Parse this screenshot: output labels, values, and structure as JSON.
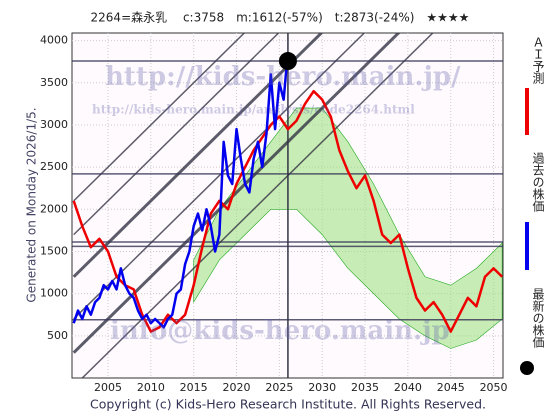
{
  "chart_data": {
    "type": "line",
    "title": "2264=森永乳　 c:3758　m:1612(-57%)　t:2873(-24%)　★★★★",
    "generated": "Generated on Monday 2026/1/5.",
    "copyright": "Copyright (c) Kids-Hero Research Institute. All Rights Reserved.",
    "watermarks": [
      "http://kids-hero.main.jp/",
      "http://kids-hero.main.jp/analysis/code2264.html",
      "info@kids-hero.main.jp"
    ],
    "xlim": [
      2000.8,
      2051.1
    ],
    "ylim": [
      0,
      4090
    ],
    "xticks": [
      2005,
      2010,
      2015,
      2020,
      2025,
      2030,
      2035,
      2040,
      2045,
      2050
    ],
    "yticks": [
      500,
      1000,
      1500,
      2000,
      2500,
      3000,
      3500,
      4000
    ],
    "grid": true,
    "band": {
      "color": "#9be07a",
      "x": [
        2015,
        2018,
        2021,
        2024,
        2027,
        2030,
        2033,
        2036,
        2039,
        2042,
        2045,
        2048,
        2051
      ],
      "lower": [
        900,
        1400,
        1700,
        2000,
        2000,
        1700,
        1300,
        1000,
        700,
        500,
        350,
        450,
        700
      ],
      "upper": [
        1400,
        2000,
        2400,
        2800,
        3200,
        3200,
        2800,
        2300,
        1700,
        1200,
        1100,
        1300,
        1600
      ]
    },
    "levels": [
      3758,
      2420,
      1612,
      1560,
      690
    ],
    "trend_lines": [
      {
        "x": [
          2001,
          2051
        ],
        "y": [
          -100,
          4900
        ],
        "width": 1.5
      },
      {
        "x": [
          2001,
          2051
        ],
        "y": [
          300,
          5300
        ],
        "width": 3
      },
      {
        "x": [
          2001,
          2051
        ],
        "y": [
          700,
          5700
        ],
        "width": 1.5
      },
      {
        "x": [
          2001,
          2051
        ],
        "y": [
          1200,
          6200
        ],
        "width": 3
      },
      {
        "x": [
          2001,
          2051
        ],
        "y": [
          1700,
          6700
        ],
        "width": 1.5
      },
      {
        "x": [
          2001,
          2051
        ],
        "y": [
          2100,
          7100
        ],
        "width": 1.5
      }
    ],
    "series": [
      {
        "name": "ＡＩ予測",
        "color": "#ee0000",
        "x": [
          2001,
          2002,
          2003,
          2004,
          2005,
          2006,
          2007,
          2008,
          2009,
          2010,
          2011,
          2012,
          2013,
          2014,
          2015,
          2016,
          2017,
          2018,
          2019,
          2020,
          2021,
          2022,
          2023,
          2024,
          2025,
          2026,
          2027,
          2028,
          2029,
          2030,
          2031,
          2032,
          2033,
          2034,
          2035,
          2036,
          2037,
          2038,
          2039,
          2040,
          2041,
          2042,
          2043,
          2044,
          2045,
          2046,
          2047,
          2048,
          2049,
          2050,
          2051
        ],
        "values": [
          2100,
          1800,
          1550,
          1650,
          1500,
          1200,
          1100,
          1050,
          750,
          550,
          600,
          750,
          650,
          750,
          1100,
          1550,
          1950,
          2100,
          2000,
          2300,
          2500,
          2700,
          2850,
          3000,
          3100,
          2950,
          3050,
          3250,
          3400,
          3300,
          3100,
          2700,
          2450,
          2250,
          2400,
          2100,
          1700,
          1600,
          1700,
          1300,
          950,
          800,
          900,
          750,
          550,
          750,
          950,
          850,
          1200,
          1300,
          1200
        ]
      },
      {
        "name": "過去の株価",
        "color": "#0000ee",
        "x": [
          2001,
          2001.5,
          2002,
          2002.5,
          2003,
          2003.5,
          2004,
          2004.5,
          2005,
          2005.5,
          2006,
          2006.5,
          2007,
          2007.5,
          2008,
          2008.5,
          2009,
          2009.5,
          2010,
          2010.5,
          2011,
          2011.5,
          2012,
          2012.5,
          2013,
          2013.5,
          2014,
          2014.5,
          2015,
          2015.5,
          2016,
          2016.5,
          2017,
          2017.5,
          2018,
          2018.5,
          2019,
          2019.5,
          2020,
          2020.5,
          2021,
          2021.5,
          2022,
          2022.5,
          2023,
          2023.5,
          2024,
          2024.5,
          2025,
          2025.5,
          2025.9
        ],
        "values": [
          650,
          800,
          700,
          850,
          750,
          900,
          950,
          1100,
          1050,
          1150,
          1050,
          1300,
          1100,
          1000,
          950,
          800,
          700,
          750,
          650,
          700,
          650,
          600,
          700,
          750,
          1000,
          1050,
          1350,
          1500,
          1800,
          1950,
          1750,
          2000,
          1800,
          1500,
          1700,
          2800,
          2400,
          2300,
          2950,
          2600,
          2300,
          2200,
          2600,
          2800,
          2500,
          2900,
          3600,
          2950,
          3500,
          3300,
          3758
        ]
      }
    ],
    "latest": {
      "name": "最新の株価",
      "color": "#000000",
      "x": 2026,
      "value": 3758
    }
  }
}
